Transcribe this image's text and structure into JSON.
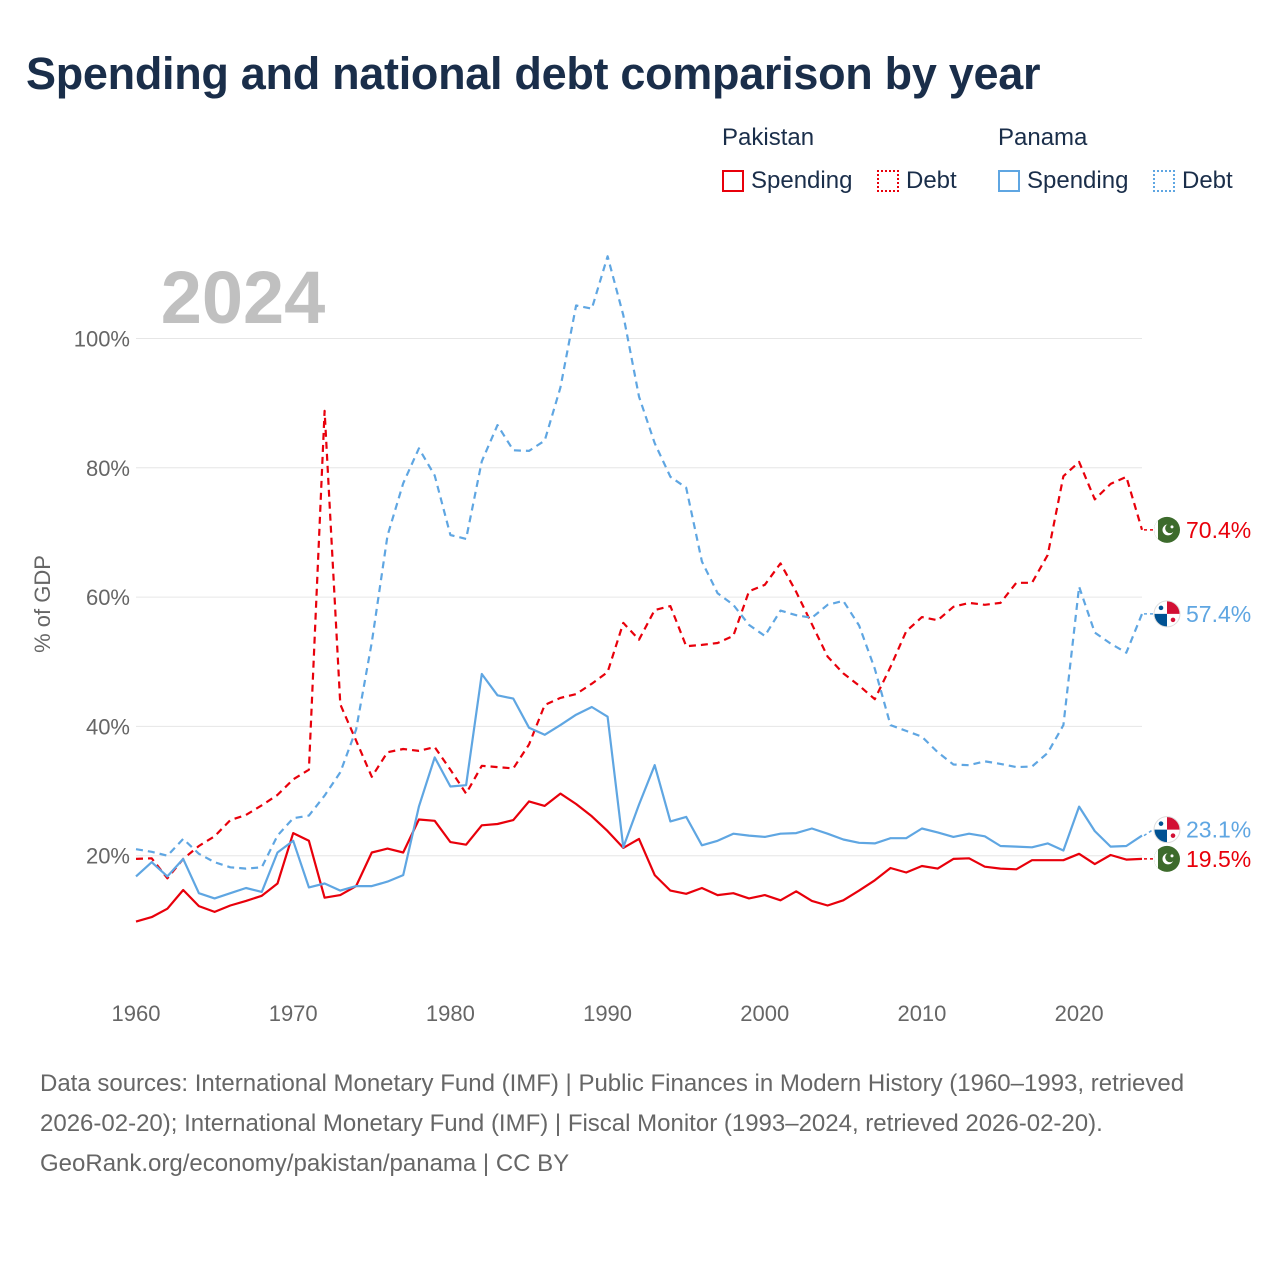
{
  "colors": {
    "pakistan": "#e8000b",
    "panama": "#5fa6e2",
    "grid": "#e6e6e6",
    "axis_text": "#666666",
    "title": "#1a2e4a",
    "watermark": "#c0c0c0"
  },
  "legend": {
    "pakistan": {
      "title": "Pakistan",
      "spending": "Spending",
      "debt": "Debt"
    },
    "panama": {
      "title": "Panama",
      "spending": "Spending",
      "debt": "Debt"
    }
  },
  "footer": {
    "sources": "Data sources: International Monetary Fund (IMF) | Public Finances in Modern History (1960–1993, retrieved 2026-02-20); International Monetary Fund (IMF) | Fiscal Monitor (1993–2024, retrieved 2026-02-20).",
    "credit": "GeoRank.org/economy/pakistan/panama | CC BY"
  },
  "chart_data": {
    "type": "line",
    "title": "Spending and national debt comparison by year",
    "year_label": "2024",
    "ylabel": "% of GDP",
    "xlabel": "",
    "xlim": [
      1960,
      2024
    ],
    "ylim": [
      0,
      116
    ],
    "y_ticks": [
      20,
      40,
      60,
      80,
      100
    ],
    "y_tick_labels": [
      "20%",
      "40%",
      "60%",
      "80%",
      "100%"
    ],
    "x_ticks": [
      1960,
      1970,
      1980,
      1990,
      2000,
      2010,
      2020
    ],
    "x_tick_labels": [
      "1960",
      "1970",
      "1980",
      "1990",
      "2000",
      "2010",
      "2020"
    ],
    "x": [
      1960,
      1961,
      1962,
      1963,
      1964,
      1965,
      1966,
      1967,
      1968,
      1969,
      1970,
      1971,
      1972,
      1973,
      1974,
      1975,
      1976,
      1977,
      1978,
      1979,
      1980,
      1981,
      1982,
      1983,
      1984,
      1985,
      1986,
      1987,
      1988,
      1989,
      1990,
      1991,
      1992,
      1993,
      1994,
      1995,
      1996,
      1997,
      1998,
      1999,
      2000,
      2001,
      2002,
      2003,
      2004,
      2005,
      2006,
      2007,
      2008,
      2009,
      2010,
      2011,
      2012,
      2013,
      2014,
      2015,
      2016,
      2017,
      2018,
      2019,
      2020,
      2021,
      2022,
      2023,
      2024
    ],
    "series": [
      {
        "name": "Pakistan Spending",
        "country": "pakistan",
        "style": "solid",
        "end_label": "19.5%",
        "values": [
          9.8,
          10.5,
          11.8,
          14.7,
          12.2,
          11.3,
          12.3,
          13.0,
          13.8,
          15.7,
          23.5,
          22.3,
          13.5,
          13.9,
          15.3,
          20.5,
          21.1,
          20.5,
          25.6,
          25.4,
          22.1,
          21.7,
          24.7,
          24.9,
          25.5,
          28.4,
          27.7,
          29.6,
          28.0,
          26.1,
          23.8,
          21.2,
          22.6,
          17.0,
          14.6,
          14.1,
          15.0,
          13.9,
          14.2,
          13.4,
          13.9,
          13.1,
          14.5,
          13.0,
          12.3,
          13.1,
          14.6,
          16.2,
          18.1,
          17.4,
          18.4,
          18.0,
          19.5,
          19.6,
          18.3,
          18.0,
          17.9,
          19.3,
          19.3,
          19.3,
          20.3,
          18.7,
          20.1,
          19.4,
          19.5
        ]
      },
      {
        "name": "Pakistan Debt",
        "country": "pakistan",
        "style": "dashed",
        "end_label": "70.4%",
        "values": [
          19.5,
          19.6,
          16.5,
          19.5,
          21.5,
          23.0,
          25.5,
          26.3,
          27.8,
          29.4,
          31.8,
          33.3,
          88.8,
          43.4,
          37.8,
          32.2,
          36.0,
          36.5,
          36.2,
          36.8,
          33.3,
          29.6,
          33.9,
          33.7,
          33.5,
          37.2,
          43.3,
          44.4,
          45.0,
          46.6,
          48.4,
          56.0,
          53.4,
          58.0,
          58.6,
          52.4,
          52.6,
          52.9,
          54.0,
          60.9,
          61.9,
          65.2,
          60.8,
          55.8,
          50.8,
          48.2,
          46.3,
          44.2,
          49.2,
          54.7,
          56.9,
          56.4,
          58.5,
          59.1,
          58.8,
          59.1,
          62.2,
          62.2,
          66.5,
          78.7,
          80.9,
          75.1,
          77.5,
          78.6,
          70.4
        ]
      },
      {
        "name": "Panama Spending",
        "country": "panama",
        "style": "solid",
        "end_label": "23.1%",
        "values": [
          16.8,
          19.0,
          16.8,
          19.5,
          14.2,
          13.4,
          14.2,
          15.0,
          14.4,
          20.5,
          22.3,
          15.1,
          15.7,
          14.6,
          15.3,
          15.3,
          16.0,
          17.0,
          27.6,
          35.2,
          30.7,
          30.9,
          48.1,
          44.8,
          44.3,
          39.8,
          38.7,
          40.2,
          41.8,
          43.0,
          41.5,
          21.3,
          27.9,
          34.0,
          25.3,
          26.0,
          21.6,
          22.3,
          23.4,
          23.1,
          22.9,
          23.4,
          23.5,
          24.2,
          23.4,
          22.5,
          22.0,
          21.9,
          22.7,
          22.7,
          24.2,
          23.6,
          22.9,
          23.4,
          23.0,
          21.5,
          21.4,
          21.3,
          21.9,
          20.8,
          27.6,
          23.8,
          21.4,
          21.5,
          23.1
        ]
      },
      {
        "name": "Panama Debt",
        "country": "panama",
        "style": "dashed",
        "end_label": "57.4%",
        "values": [
          21.0,
          20.6,
          20.0,
          22.6,
          20.3,
          19.0,
          18.2,
          18.0,
          18.2,
          23.1,
          25.8,
          26.2,
          29.3,
          32.9,
          39.5,
          53.0,
          69.5,
          77.6,
          83.0,
          78.8,
          69.6,
          69.0,
          81.0,
          86.6,
          82.7,
          82.6,
          84.2,
          92.4,
          105.1,
          104.6,
          112.7,
          103.6,
          91.0,
          83.8,
          78.6,
          76.9,
          65.5,
          60.6,
          58.8,
          55.7,
          54.0,
          57.9,
          57.2,
          56.8,
          58.8,
          59.4,
          55.6,
          48.9,
          40.2,
          39.3,
          38.4,
          36.0,
          34.1,
          34.0,
          34.6,
          34.2,
          33.7,
          33.8,
          35.9,
          40.2,
          61.6,
          54.5,
          52.8,
          51.4,
          57.4
        ]
      }
    ]
  }
}
